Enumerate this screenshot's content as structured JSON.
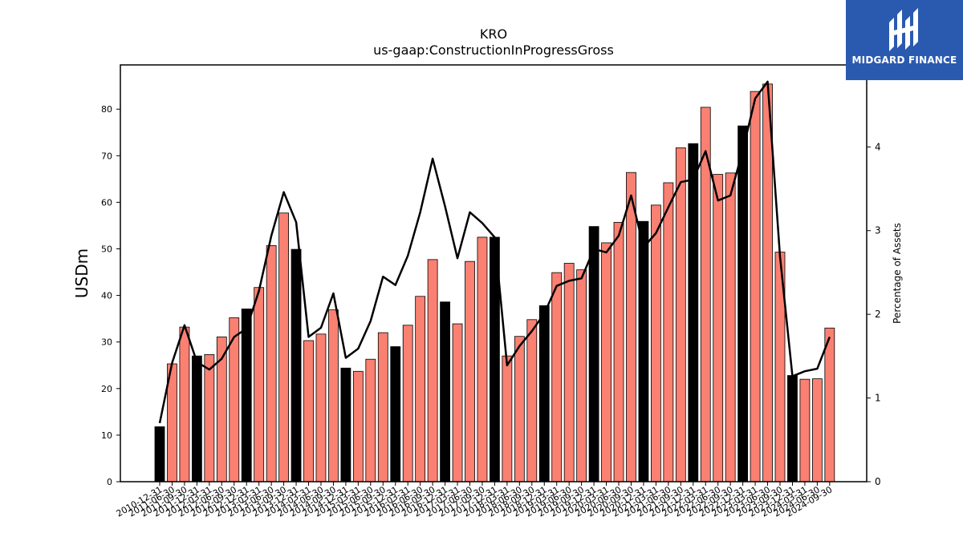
{
  "chart_data": {
    "type": "bar",
    "title": "KRO",
    "subtitle": "us-gaap:ConstructionInProgressGross",
    "ylabel": "USDm",
    "y2label": "Percentage of Assets",
    "ylim": [
      0,
      89.5
    ],
    "y2lim": [
      0,
      4.98
    ],
    "yticks": [
      0,
      10,
      20,
      30,
      40,
      50,
      60,
      70,
      80
    ],
    "y2ticks": [
      0,
      1,
      2,
      3,
      4
    ],
    "categories": [
      "2010-12-31",
      "2011-06-30",
      "2011-09-30",
      "2011-12-31",
      "2012-03-31",
      "2012-06-30",
      "2012-09-30",
      "2012-12-31",
      "2013-03-31",
      "2013-06-30",
      "2013-09-30",
      "2013-12-31",
      "2014-03-31",
      "2014-06-30",
      "2014-09-30",
      "2014-12-31",
      "2015-03-31",
      "2015-06-30",
      "2015-09-30",
      "2015-12-31",
      "2016-03-31",
      "2016-06-30",
      "2016-09-30",
      "2016-12-31",
      "2017-03-31",
      "2017-06-30",
      "2017-09-30",
      "2017-12-31",
      "2018-03-31",
      "2018-06-30",
      "2018-09-30",
      "2018-12-31",
      "2019-03-31",
      "2019-06-30",
      "2019-09-30",
      "2019-12-31",
      "2020-03-31",
      "2020-06-30",
      "2020-09-30",
      "2020-12-31",
      "2021-03-31",
      "2021-06-30",
      "2021-09-30",
      "2021-12-31",
      "2022-03-31",
      "2022-06-30",
      "2022-09-30",
      "2022-12-31",
      "2023-03-31",
      "2023-06-30",
      "2023-09-30",
      "2023-12-31",
      "2024-03-31",
      "2024-06-30",
      "2024-09-30"
    ],
    "tick_labels": [
      "2010-12-31",
      "2011-06-30",
      "2011-09-30",
      "2011-12-31",
      "2012-03-31",
      "2012-06-30",
      "2012-09-30",
      "2012-12-31",
      "2013-03-31",
      "2013-06-30",
      "2013-09-30",
      "2013-12-31",
      "2014-03-31",
      "2014-06-30",
      "2014-09-30",
      "2014-12-31",
      "2015-03-31",
      "2015-06-30",
      "2015-09-30",
      "2015-12-31",
      "2016-03-31",
      "2016-06-30",
      "2016-09-30",
      "2016-12-31",
      "2017-03-31",
      "2017-06-30",
      "2017-09-30",
      "2017-12-31",
      "2018-03-31",
      "2018-06-30",
      "2018-09-30",
      "2018-12-31",
      "2019-03-31",
      "2019-06-30",
      "2019-09-30",
      "2019-12-31",
      "2020-03-31",
      "2020-06-30",
      "2020-09-30",
      "2020-12-31",
      "2021-03-31",
      "2021-06-30",
      "2021-09-30",
      "2021-12-31",
      "2022-03-31",
      "2022-06-30",
      "2022-09-30",
      "2022-12-31",
      "2023-03-31",
      "2023-06-30",
      "2023-09-30",
      "2023-12-31",
      "2024-03-31",
      "2024-06-30",
      "2024-09-30"
    ],
    "values": [
      11.8,
      25.3,
      33.2,
      27.0,
      27.3,
      31.1,
      35.2,
      37.1,
      41.7,
      50.7,
      57.7,
      49.9,
      30.3,
      31.7,
      36.9,
      24.4,
      23.7,
      26.3,
      32.0,
      29.0,
      33.6,
      39.8,
      47.7,
      38.6,
      33.9,
      47.3,
      52.5,
      52.5,
      27.0,
      31.2,
      34.8,
      37.8,
      44.9,
      46.9,
      45.5,
      54.8,
      51.3,
      55.7,
      66.4,
      55.9,
      59.4,
      64.2,
      71.7,
      72.6,
      80.4,
      66.0,
      66.3,
      76.4,
      83.8,
      85.4,
      49.3,
      22.8,
      22.0,
      22.1,
      33.0
    ],
    "annual_flags": [
      1,
      0,
      0,
      1,
      0,
      0,
      0,
      1,
      0,
      0,
      0,
      1,
      0,
      0,
      0,
      1,
      0,
      0,
      0,
      1,
      0,
      0,
      0,
      1,
      0,
      0,
      0,
      1,
      0,
      0,
      0,
      1,
      0,
      0,
      0,
      1,
      0,
      0,
      0,
      1,
      0,
      0,
      0,
      1,
      0,
      0,
      0,
      1,
      0,
      0,
      0,
      1,
      0,
      0,
      0
    ],
    "pct_assets": [
      0.7,
      1.42,
      1.87,
      1.43,
      1.34,
      1.47,
      1.73,
      1.83,
      2.28,
      2.94,
      3.46,
      3.1,
      1.73,
      1.84,
      2.25,
      1.48,
      1.59,
      1.92,
      2.45,
      2.35,
      2.7,
      3.22,
      3.86,
      3.29,
      2.67,
      3.22,
      3.09,
      2.92,
      1.39,
      1.62,
      1.8,
      2.01,
      2.34,
      2.4,
      2.43,
      2.78,
      2.74,
      2.94,
      3.42,
      2.8,
      2.97,
      3.28,
      3.58,
      3.61,
      3.95,
      3.36,
      3.42,
      3.96,
      4.58,
      4.78,
      2.69,
      1.26,
      1.32,
      1.35,
      1.73
    ],
    "colors": {
      "quarterly_bar": "#fa8072",
      "annual_bar": "#000000",
      "line": "#000000"
    }
  },
  "logo": {
    "text": "MIDGARD FINANCE",
    "background": "#2a5ab0"
  }
}
